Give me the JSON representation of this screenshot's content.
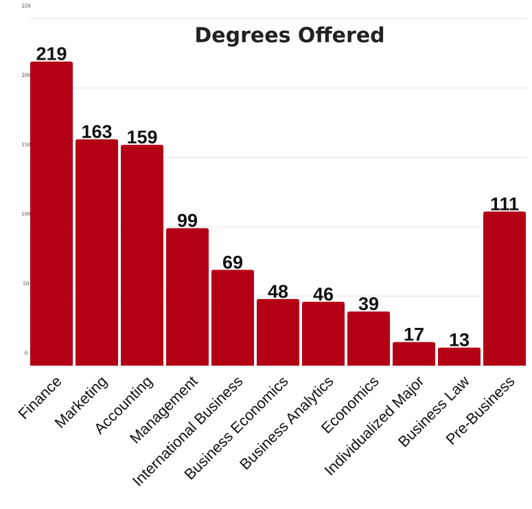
{
  "chart_data": {
    "type": "bar",
    "title": "Degrees Offered",
    "categories": [
      "Finance",
      "Marketing",
      "Accounting",
      "Management",
      "International Business",
      "Business Economics",
      "Business Analytics",
      "Economics",
      "Individualized Major",
      "Business Law",
      "Pre-Business"
    ],
    "values": [
      219,
      163,
      159,
      99,
      69,
      48,
      46,
      39,
      17,
      13,
      111
    ],
    "color": "#b40015",
    "ylim": [
      0,
      250
    ],
    "yticks": [
      0,
      50,
      100,
      150,
      200,
      250
    ],
    "grid": true
  }
}
